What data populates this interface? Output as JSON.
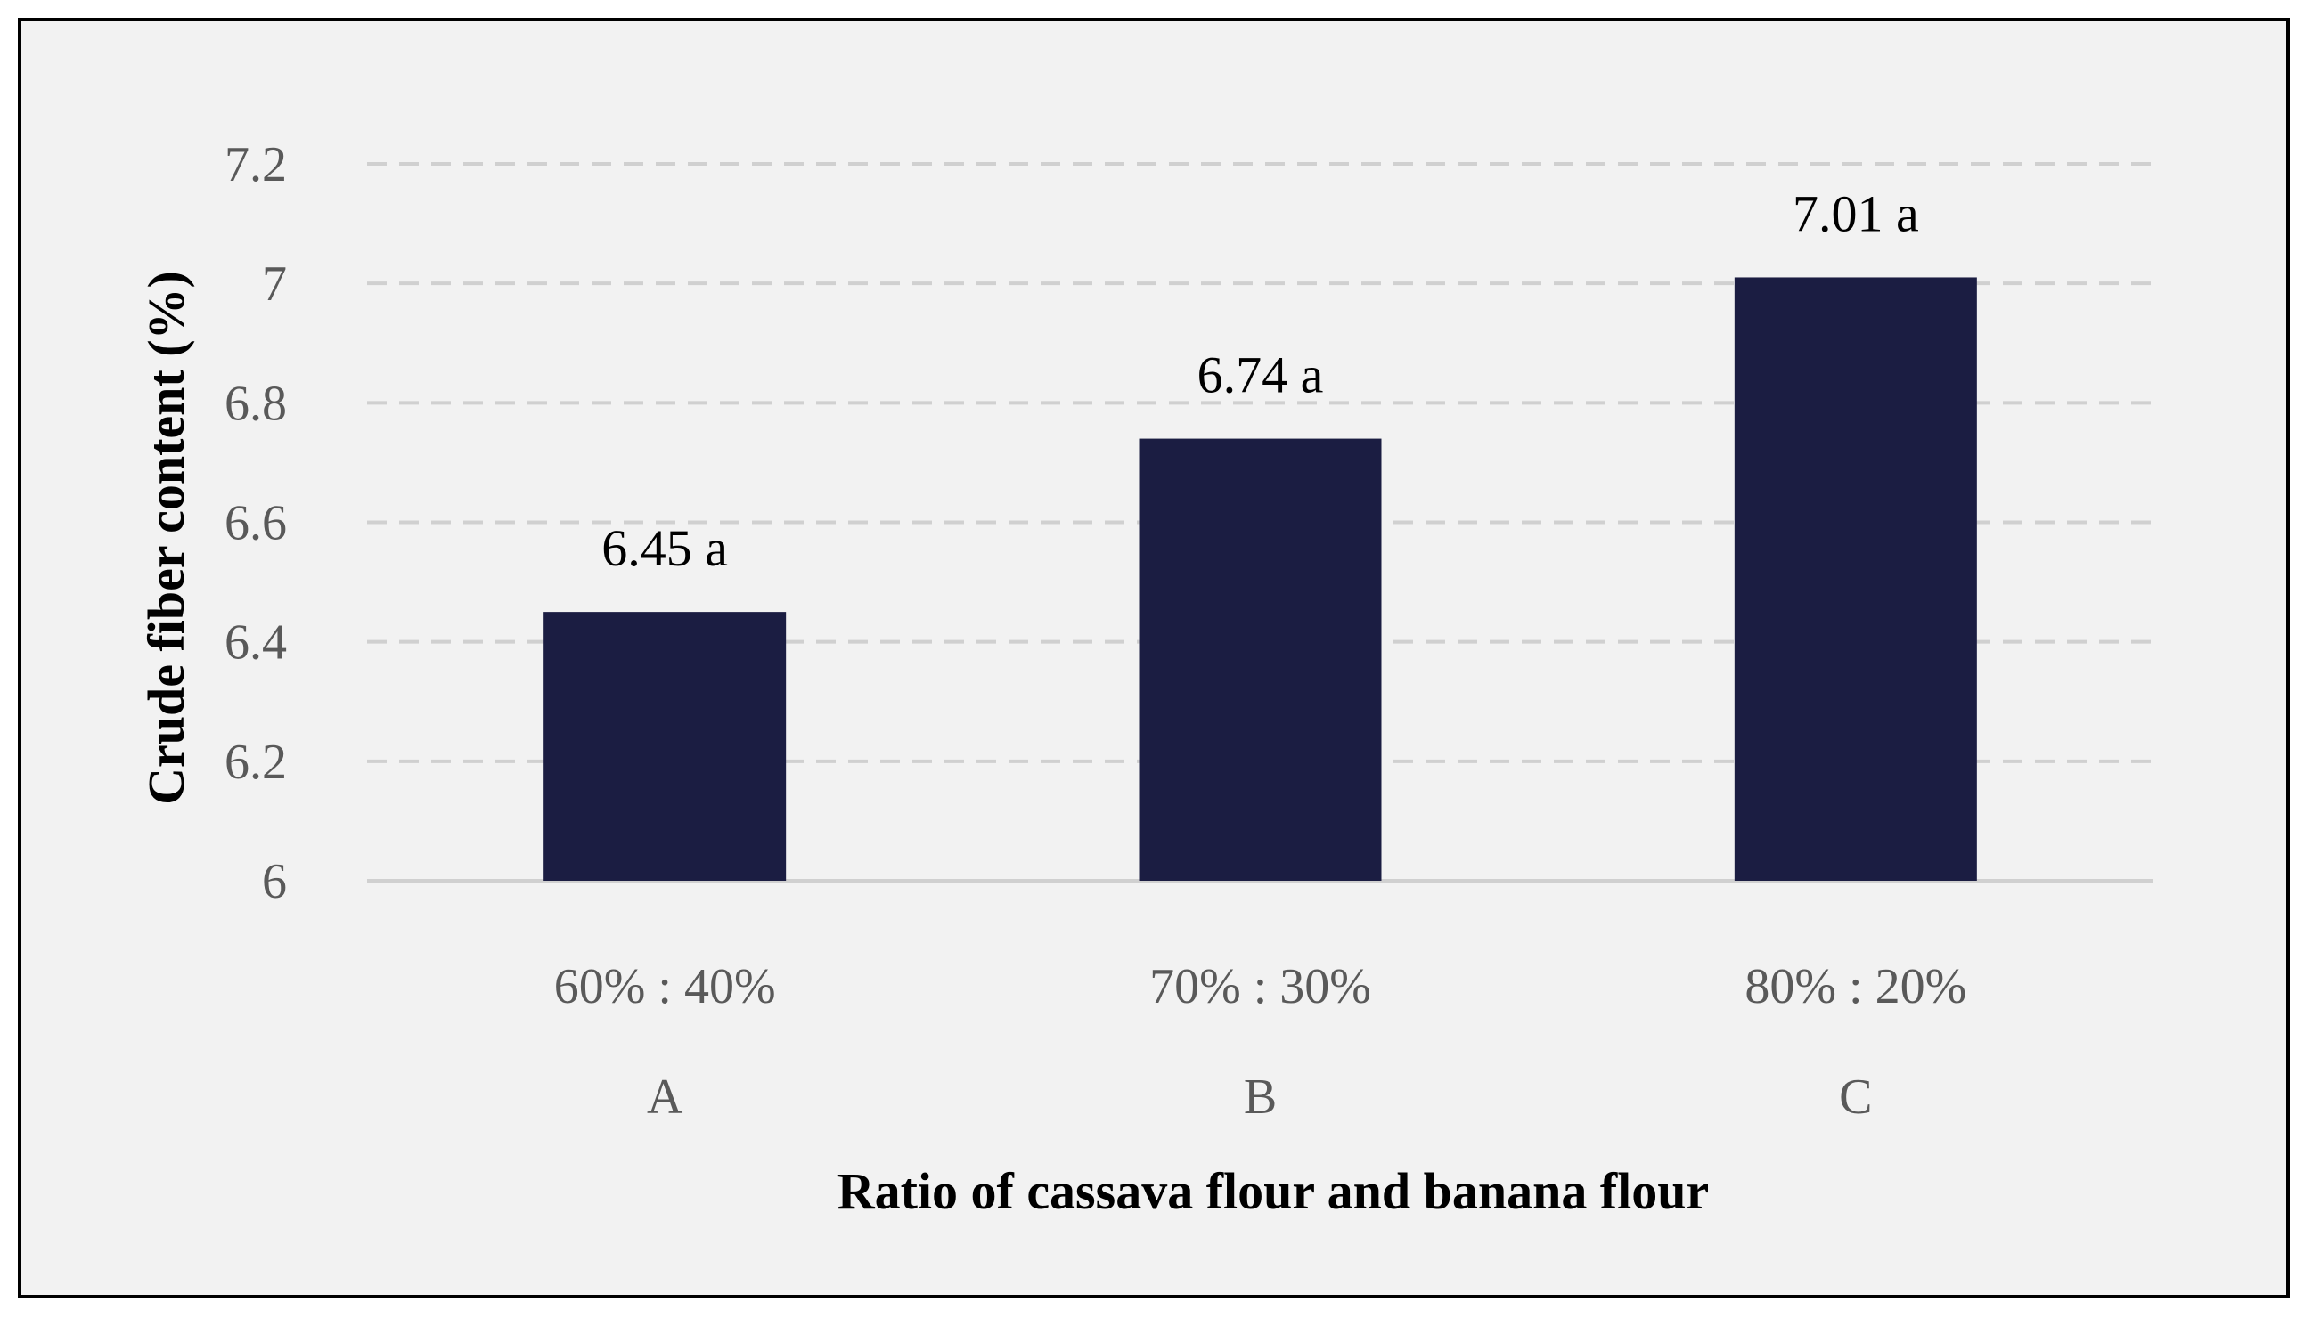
{
  "chart_data": {
    "type": "bar",
    "categories": [
      "60% : 40%",
      "70% : 30%",
      "80% : 20%"
    ],
    "sub_categories": [
      "A",
      "B",
      "C"
    ],
    "values": [
      6.45,
      6.74,
      7.01
    ],
    "data_labels": [
      "6.45 a",
      "6.74 a",
      "7.01 a"
    ],
    "xlabel": "Ratio of cassava flour and banana flour",
    "ylabel": "Crude fiber content (%)",
    "ylim": [
      6,
      7.2
    ],
    "yticks": [
      6,
      6.2,
      6.4,
      6.6,
      6.8,
      7,
      7.2
    ],
    "ytick_labels": [
      "6",
      "6.2",
      "6.4",
      "6.6",
      "6.8",
      "7",
      "7.2"
    ],
    "grid": true,
    "grid_style": "dashed",
    "legend": "none",
    "colors": {
      "bar": "#1b1d42",
      "background": "#f2f2f2",
      "grid": "#d0d0d0",
      "frame": "#000000"
    }
  }
}
